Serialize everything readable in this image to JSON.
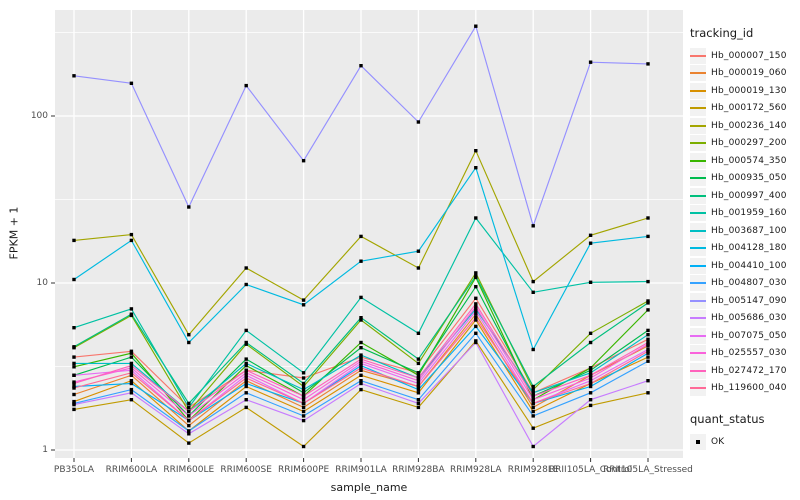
{
  "chart_data": {
    "type": "line",
    "title": "",
    "xlabel": "sample_name",
    "ylabel": "FPKM + 1",
    "y_scale": "log10",
    "ylim": [
      0.92,
      430
    ],
    "yticks": [
      1,
      10,
      100
    ],
    "ytick_labels": [
      "1",
      "10",
      "100"
    ],
    "grid": "white major and minor gridlines on gray panel",
    "legend_position": "right",
    "marker": {
      "shape": "square",
      "color": "#000000",
      "size": 3.4
    },
    "categories": [
      "PB350LA",
      "RRIM600LA",
      "RRIM600LE",
      "RRIM600SE",
      "RRIM600PE",
      "RRIM901LA",
      "RRIM928BA",
      "RRIM928LA",
      "RRIM928LE",
      "RRII105LA_Control",
      "RRII105LA_Stressed"
    ],
    "series": [
      {
        "name": "Hb_000007_150",
        "color": "#F8766D",
        "values": [
          3.6,
          3.9,
          1.8,
          3.0,
          2.7,
          3.6,
          2.9,
          8.1,
          2.2,
          3.1,
          4.6
        ]
      },
      {
        "name": "Hb_000019_060",
        "color": "#EA8331",
        "values": [
          2.15,
          2.8,
          1.4,
          2.6,
          1.8,
          3.0,
          2.4,
          6.5,
          1.8,
          2.8,
          4.2
        ]
      },
      {
        "name": "Hb_000019_130",
        "color": "#D89000",
        "values": [
          1.95,
          2.6,
          1.3,
          2.4,
          1.7,
          2.8,
          2.2,
          6.0,
          1.7,
          2.5,
          3.6
        ]
      },
      {
        "name": "Hb_000172_560",
        "color": "#C09B00",
        "values": [
          1.75,
          2.0,
          1.1,
          1.8,
          1.05,
          2.3,
          1.8,
          4.5,
          1.35,
          1.85,
          2.2
        ]
      },
      {
        "name": "Hb_000236_140",
        "color": "#A3A500",
        "values": [
          18,
          19.5,
          4.9,
          12.3,
          7.9,
          19,
          12.3,
          62,
          10.2,
          19.3,
          24.5
        ]
      },
      {
        "name": "Hb_000297_200",
        "color": "#7CAE00",
        "values": [
          4.1,
          6.4,
          1.7,
          4.3,
          2.4,
          6.0,
          3.3,
          11.5,
          2.3,
          5.0,
          7.8
        ]
      },
      {
        "name": "Hb_000574_350",
        "color": "#39B600",
        "values": [
          3.15,
          3.8,
          1.5,
          3.2,
          2.1,
          4.4,
          2.8,
          10.8,
          2.0,
          3.1,
          6.9
        ]
      },
      {
        "name": "Hb_000935_050",
        "color": "#00BB4E",
        "values": [
          2.8,
          3.6,
          1.6,
          3.5,
          2.2,
          4.1,
          2.9,
          9.5,
          2.1,
          3.0,
          5.2
        ]
      },
      {
        "name": "Hb_000997_400",
        "color": "#00BF7D",
        "values": [
          4.15,
          6.5,
          1.9,
          4.4,
          2.5,
          6.2,
          3.5,
          11.0,
          2.4,
          4.4,
          7.6
        ]
      },
      {
        "name": "Hb_001959_160",
        "color": "#00C1A3",
        "values": [
          5.4,
          7.0,
          1.8,
          5.2,
          2.9,
          8.2,
          5.0,
          24.5,
          8.8,
          10.1,
          10.2
        ]
      },
      {
        "name": "Hb_003687_100",
        "color": "#00BFC4",
        "values": [
          3.3,
          3.3,
          1.7,
          3.3,
          2.3,
          3.7,
          2.7,
          7.0,
          2.2,
          2.9,
          4.9
        ]
      },
      {
        "name": "Hb_004128_180",
        "color": "#00BAE0",
        "values": [
          10.5,
          18,
          4.4,
          9.8,
          7.4,
          13.5,
          15.5,
          49,
          4.0,
          17.3,
          19
        ]
      },
      {
        "name": "Hb_004410_100",
        "color": "#00B0F6",
        "values": [
          2.4,
          2.5,
          1.5,
          2.5,
          1.9,
          3.2,
          2.3,
          5.5,
          1.9,
          2.4,
          3.8
        ]
      },
      {
        "name": "Hb_004807_030",
        "color": "#35A2FF",
        "values": [
          1.9,
          2.3,
          1.3,
          2.2,
          1.6,
          2.6,
          2.0,
          5.0,
          1.6,
          2.2,
          3.4
        ]
      },
      {
        "name": "Hb_005147_090",
        "color": "#9590FF",
        "values": [
          174,
          157,
          28.5,
          152,
          54,
          200,
          92,
          345,
          22,
          210,
          205
        ]
      },
      {
        "name": "Hb_005686_030",
        "color": "#C77CFF",
        "values": [
          1.87,
          2.2,
          1.25,
          2.0,
          1.5,
          2.5,
          1.9,
          4.4,
          1.05,
          2.0,
          2.6
        ]
      },
      {
        "name": "Hb_007075_050",
        "color": "#E76BF3",
        "values": [
          2.8,
          3.0,
          1.5,
          2.8,
          1.9,
          3.3,
          2.5,
          6.8,
          1.9,
          2.6,
          4.0
        ]
      },
      {
        "name": "Hb_025557_030",
        "color": "#FA62DB",
        "values": [
          2.55,
          3.1,
          1.6,
          2.9,
          2.0,
          3.4,
          2.6,
          7.2,
          2.0,
          2.7,
          4.3
        ]
      },
      {
        "name": "Hb_027472_170",
        "color": "#FF62BC",
        "values": [
          2.5,
          3.2,
          1.7,
          3.0,
          2.1,
          3.5,
          2.7,
          7.5,
          2.1,
          2.8,
          4.4
        ]
      },
      {
        "name": "Hb_119600_040",
        "color": "#FF6A98",
        "values": [
          2.35,
          2.9,
          1.5,
          2.7,
          1.9,
          3.1,
          2.4,
          6.2,
          1.9,
          2.5,
          3.9
        ]
      }
    ]
  },
  "legend": {
    "tracking_title": "tracking_id",
    "quant_title": "quant_status",
    "quant_items": [
      {
        "label": "OK",
        "marker": "black-square"
      }
    ]
  },
  "colors": {
    "panel_bg": "#EBEBEB",
    "grid": "#FFFFFF",
    "axis_text": "#4D4D4D",
    "tick_mark": "#333333",
    "title_text": "#1A1A1A",
    "point": "#000000",
    "legend_key_bg": "#F2F2F2"
  }
}
